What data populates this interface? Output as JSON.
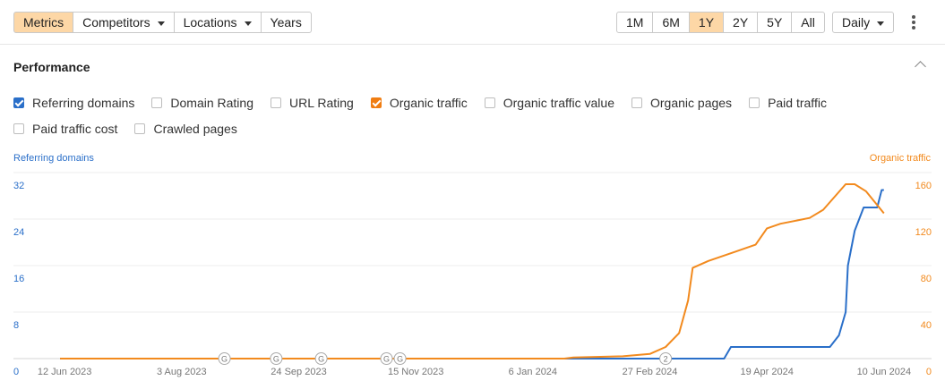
{
  "toolbar": {
    "tabs": [
      "Metrics",
      "Competitors",
      "Locations",
      "Years"
    ],
    "active_tab": 0,
    "ranges": [
      "1M",
      "6M",
      "1Y",
      "2Y",
      "5Y",
      "All"
    ],
    "active_range": 2,
    "interval": "Daily"
  },
  "section": {
    "title": "Performance"
  },
  "metrics": [
    {
      "label": "Referring domains",
      "checked": true,
      "color": "#2a6fc9"
    },
    {
      "label": "Domain Rating",
      "checked": false
    },
    {
      "label": "URL Rating",
      "checked": false
    },
    {
      "label": "Organic traffic",
      "checked": true,
      "color": "#f07d12"
    },
    {
      "label": "Organic traffic value",
      "checked": false
    },
    {
      "label": "Organic pages",
      "checked": false
    },
    {
      "label": "Paid traffic",
      "checked": false
    },
    {
      "label": "Paid traffic cost",
      "checked": false
    },
    {
      "label": "Crawled pages",
      "checked": false
    }
  ],
  "chart_data": {
    "type": "line",
    "y_label": "Referring domains",
    "y2_label": "Organic traffic",
    "grid": true,
    "xlim": [
      "2023-05-31",
      "2024-06-22"
    ],
    "xticks": [
      {
        "value": "2023-06-12",
        "label": "12 Jun 2023"
      },
      {
        "value": "2023-08-03",
        "label": "3 Aug 2023"
      },
      {
        "value": "2023-09-24",
        "label": "24 Sep 2023"
      },
      {
        "value": "2023-11-15",
        "label": "15 Nov 2023"
      },
      {
        "value": "2024-01-06",
        "label": "6 Jan 2024"
      },
      {
        "value": "2024-02-27",
        "label": "27 Feb 2024"
      },
      {
        "value": "2024-04-19",
        "label": "19 Apr 2024"
      },
      {
        "value": "2024-06-10",
        "label": "10 Jun 2024"
      }
    ],
    "ylim": [
      0,
      32
    ],
    "yticks": [
      0,
      8,
      16,
      24,
      32
    ],
    "y2lim": [
      0,
      160
    ],
    "y2ticks": [
      0,
      40,
      80,
      120,
      160
    ],
    "series": [
      {
        "name": "Referring domains",
        "color": "#2a6fc9",
        "x": [
          "2023-06-10",
          "2024-03-31",
          "2024-04-03",
          "2024-05-17",
          "2024-05-21",
          "2024-05-24",
          "2024-05-25",
          "2024-05-28",
          "2024-06-01",
          "2024-06-07",
          "2024-06-09",
          "2024-06-10"
        ],
        "values": [
          0,
          0,
          2,
          2,
          4,
          8,
          16,
          22,
          26,
          26,
          29,
          29
        ]
      },
      {
        "name": "Organic traffic",
        "color": "#f28a1e",
        "axis": "y2",
        "x": [
          "2023-06-10",
          "2024-01-20",
          "2024-01-24",
          "2024-02-15",
          "2024-02-27",
          "2024-03-05",
          "2024-03-11",
          "2024-03-15",
          "2024-03-17",
          "2024-03-24",
          "2024-04-05",
          "2024-04-14",
          "2024-04-19",
          "2024-04-25",
          "2024-05-08",
          "2024-05-14",
          "2024-05-24",
          "2024-05-28",
          "2024-06-02",
          "2024-06-10"
        ],
        "values": [
          0,
          0,
          1,
          2,
          4,
          10,
          22,
          50,
          78,
          84,
          92,
          98,
          112,
          116,
          121,
          128,
          150,
          150,
          144,
          125
        ]
      }
    ],
    "annotations": [
      {
        "x": "2023-08-22",
        "label": "G"
      },
      {
        "x": "2023-09-14",
        "label": "G"
      },
      {
        "x": "2023-10-04",
        "label": "G"
      },
      {
        "x": "2023-11-02",
        "label": "G"
      },
      {
        "x": "2023-11-08",
        "label": "G"
      },
      {
        "x": "2024-03-05",
        "label": "2"
      }
    ]
  }
}
